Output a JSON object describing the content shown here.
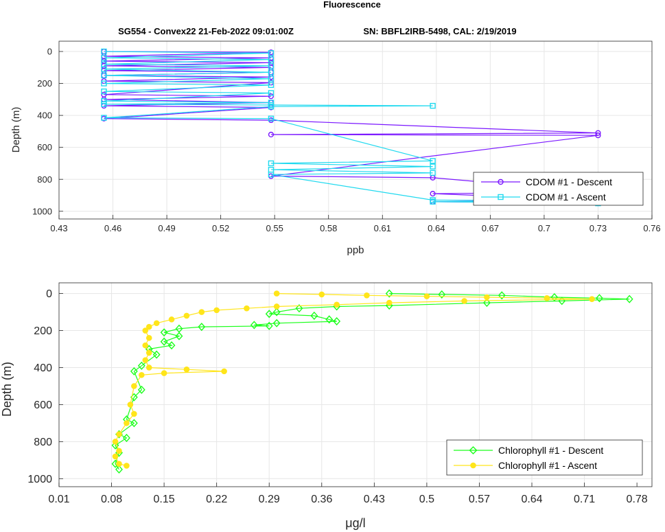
{
  "figure": {
    "title": "Fluorescence",
    "subtitle_left": "SG554 - Convex22 21-Feb-2022 09:01:00Z",
    "subtitle_right": "SN: BBFL2IRB-5498, CAL: 2/19/2019"
  },
  "chart_data": [
    {
      "type": "line",
      "xlabel": "ppb",
      "ylabel": "Depth (m)",
      "xlim": [
        0.43,
        0.76
      ],
      "ylim": [
        0,
        1000
      ],
      "y_reversed": true,
      "grid": true,
      "legend_position": "bottom-right",
      "x_ticks": [
        "0.43",
        "0.46",
        "0.49",
        "0.52",
        "0.55",
        "0.58",
        "0.61",
        "0.64",
        "0.67",
        "0.7",
        "0.73",
        "0.76"
      ],
      "y_ticks": [
        "0",
        "200",
        "400",
        "600",
        "800",
        "1000"
      ],
      "series": [
        {
          "name": "CDOM #1 - Descent",
          "color": "#7a16ff",
          "marker": "circle",
          "x": [
            0.455,
            0.548,
            0.455,
            0.548,
            0.455,
            0.548,
            0.455,
            0.548,
            0.455,
            0.548,
            0.455,
            0.548,
            0.455,
            0.548,
            0.455,
            0.548,
            0.455,
            0.548,
            0.455,
            0.548,
            0.455,
            0.548,
            0.73,
            0.548,
            0.73,
            0.548,
            0.638,
            0.73,
            0.638,
            0.73,
            0.638,
            0.73
          ],
          "y": [
            0,
            5,
            30,
            40,
            60,
            70,
            90,
            100,
            120,
            130,
            150,
            160,
            185,
            195,
            270,
            280,
            300,
            320,
            340,
            350,
            420,
            430,
            510,
            520,
            525,
            780,
            790,
            880,
            890,
            930,
            940,
            950
          ]
        },
        {
          "name": "CDOM #1 - Ascent",
          "color": "#1fd9ef",
          "marker": "square",
          "x": [
            0.455,
            0.548,
            0.455,
            0.548,
            0.455,
            0.548,
            0.455,
            0.548,
            0.455,
            0.548,
            0.455,
            0.548,
            0.455,
            0.548,
            0.455,
            0.548,
            0.455,
            0.548,
            0.638,
            0.548,
            0.455,
            0.548,
            0.638,
            0.548,
            0.638,
            0.548,
            0.638,
            0.548,
            0.638,
            0.73,
            0.638,
            0.73
          ],
          "y": [
            0,
            10,
            40,
            50,
            80,
            90,
            110,
            130,
            150,
            170,
            200,
            210,
            250,
            260,
            310,
            320,
            330,
            335,
            340,
            345,
            415,
            420,
            685,
            700,
            720,
            740,
            760,
            770,
            930,
            935,
            940,
            950
          ]
        }
      ]
    },
    {
      "type": "line",
      "xlabel": "μg/l",
      "ylabel": "Depth (m)",
      "xlim": [
        0.01,
        0.8
      ],
      "ylim": [
        0,
        1000
      ],
      "y_reversed": true,
      "grid": true,
      "legend_position": "bottom-right",
      "x_ticks": [
        "0.01",
        "0.08",
        "0.15",
        "0.22",
        "0.29",
        "0.36",
        "0.43",
        "0.5",
        "0.57",
        "0.64",
        "0.71",
        "0.78"
      ],
      "y_ticks": [
        "0",
        "200",
        "400",
        "600",
        "800",
        "1000"
      ],
      "series": [
        {
          "name": "Chlorophyll #1 - Descent",
          "color": "#1aff1a",
          "marker": "diamond",
          "x": [
            0.45,
            0.52,
            0.6,
            0.67,
            0.73,
            0.77,
            0.68,
            0.58,
            0.45,
            0.38,
            0.33,
            0.3,
            0.29,
            0.35,
            0.37,
            0.38,
            0.3,
            0.27,
            0.29,
            0.2,
            0.17,
            0.15,
            0.17,
            0.15,
            0.16,
            0.13,
            0.14,
            0.12,
            0.11,
            0.12,
            0.11,
            0.1,
            0.11,
            0.09,
            0.1,
            0.085,
            0.09,
            0.085,
            0.09
          ],
          "y": [
            0,
            5,
            10,
            20,
            25,
            30,
            40,
            50,
            65,
            70,
            80,
            100,
            110,
            120,
            140,
            150,
            160,
            170,
            175,
            180,
            190,
            210,
            230,
            260,
            280,
            300,
            330,
            390,
            420,
            520,
            560,
            680,
            700,
            760,
            780,
            820,
            860,
            920,
            950
          ]
        },
        {
          "name": "Chlorophyll #1 - Ascent",
          "color": "#ffe51a",
          "marker": "circle",
          "x": [
            0.3,
            0.36,
            0.42,
            0.5,
            0.58,
            0.66,
            0.72,
            0.55,
            0.45,
            0.38,
            0.3,
            0.26,
            0.22,
            0.2,
            0.18,
            0.16,
            0.14,
            0.13,
            0.125,
            0.13,
            0.125,
            0.13,
            0.125,
            0.13,
            0.18,
            0.23,
            0.15,
            0.12,
            0.11,
            0.105,
            0.11,
            0.1,
            0.09,
            0.085,
            0.09,
            0.085,
            0.09,
            0.1
          ],
          "y": [
            0,
            5,
            10,
            15,
            20,
            25,
            30,
            40,
            50,
            60,
            70,
            80,
            90,
            100,
            120,
            140,
            160,
            180,
            200,
            240,
            280,
            320,
            360,
            400,
            410,
            420,
            430,
            440,
            500,
            600,
            650,
            700,
            760,
            800,
            850,
            880,
            920,
            930
          ]
        }
      ]
    }
  ]
}
